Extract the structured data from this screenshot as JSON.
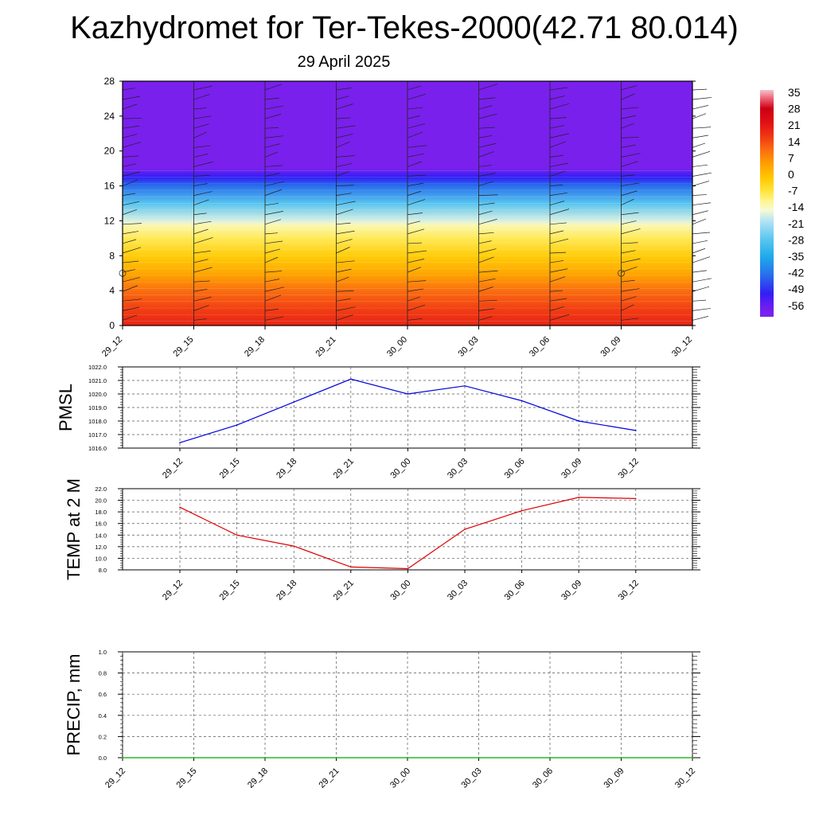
{
  "title": "Kazhydromet for Ter-Tekes-2000(42.71 80.014)",
  "subtitle": "29 April 2025",
  "colors": {
    "pmsl_line": "#0000dd",
    "temp_line": "#dd0000",
    "precip_line": "#00aa00",
    "grid": "#555555"
  },
  "chart_data": [
    {
      "type": "heatmap",
      "name": "vertical-profile",
      "x": [
        "29_12",
        "29_15",
        "29_18",
        "29_21",
        "30_00",
        "30_03",
        "30_06",
        "30_09",
        "30_12"
      ],
      "y_ticks": [
        0,
        4,
        8,
        12,
        16,
        20,
        24,
        28
      ],
      "ylim": [
        0,
        28
      ],
      "colorbar": {
        "labels": [
          "35",
          "28",
          "21",
          "14",
          "7",
          "0",
          "-7",
          "-14",
          "-21",
          "-28",
          "-35",
          "-42",
          "-49",
          "-56"
        ],
        "range": [
          -60,
          38
        ]
      },
      "profile": [
        {
          "level": 0,
          "temp": 21
        },
        {
          "level": 2,
          "temp": 17
        },
        {
          "level": 4,
          "temp": 12
        },
        {
          "level": 6,
          "temp": 5
        },
        {
          "level": 8,
          "temp": -1
        },
        {
          "level": 10,
          "temp": -7
        },
        {
          "level": 11.5,
          "temp": -12
        },
        {
          "level": 12,
          "temp": -16
        },
        {
          "level": 14,
          "temp": -27
        },
        {
          "level": 16,
          "temp": -42
        },
        {
          "level": 17,
          "temp": -50
        },
        {
          "level": 18,
          "temp": -59
        },
        {
          "level": 28,
          "temp": -59
        }
      ],
      "markers": [
        {
          "x": "29_12",
          "level": 6
        },
        {
          "x": "30_09",
          "level": 6
        }
      ]
    },
    {
      "type": "line",
      "name": "pmsl",
      "ylabel": "PMSL",
      "x": [
        "29_12",
        "29_15",
        "29_18",
        "29_21",
        "30_00",
        "30_03",
        "30_06",
        "30_09",
        "30_12"
      ],
      "values": [
        1016.4,
        1017.7,
        1019.4,
        1021.1,
        1020.0,
        1020.6,
        1019.5,
        1018.0,
        1017.3
      ],
      "ylim": [
        1016.0,
        1022.0
      ],
      "y_ticks": [
        "1016.0",
        "1017.0",
        "1018.0",
        "1019.0",
        "1020.0",
        "1021.0",
        "1022.0"
      ]
    },
    {
      "type": "line",
      "name": "temp2m",
      "ylabel": "TEMP at 2 M",
      "x": [
        "29_12",
        "29_15",
        "29_18",
        "29_21",
        "30_00",
        "30_03",
        "30_06",
        "30_09",
        "30_12"
      ],
      "values": [
        18.8,
        14.0,
        12.1,
        8.5,
        8.2,
        15.0,
        18.2,
        20.5,
        20.3
      ],
      "ylim": [
        8.0,
        22.0
      ],
      "y_ticks": [
        "8.0",
        "10.0",
        "12.0",
        "14.0",
        "16.0",
        "18.0",
        "20.0",
        "22.0"
      ]
    },
    {
      "type": "line",
      "name": "precip",
      "ylabel": "PRECIP, mm",
      "x": [
        "29_12",
        "29_15",
        "29_18",
        "29_21",
        "30_00",
        "30_03",
        "30_06",
        "30_09",
        "30_12"
      ],
      "values": [
        0,
        0,
        0,
        0,
        0,
        0,
        0,
        0,
        0
      ],
      "ylim": [
        0.0,
        1.0
      ],
      "y_ticks": [
        "0.0",
        "0.2",
        "0.4",
        "0.6",
        "0.8",
        "1.0"
      ]
    }
  ]
}
